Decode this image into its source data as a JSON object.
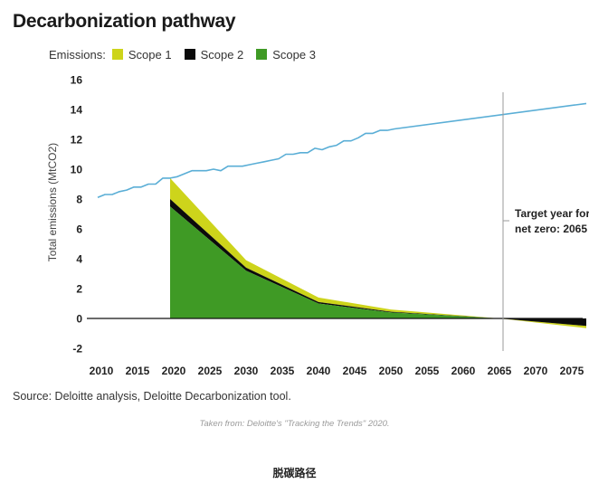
{
  "title": "Decarbonization pathway",
  "legend": {
    "lead": "Emissions:",
    "items": [
      {
        "label": "Scope 1",
        "color": "#cdd41b"
      },
      {
        "label": "Scope 2",
        "color": "#0b0b0b"
      },
      {
        "label": "Scope 3",
        "color": "#3f9a25"
      }
    ]
  },
  "source": "Source: Deloitte analysis, Deloitte Decarbonization tool.",
  "credit": "Taken from: Deloitte's \"Tracking the Trends\" 2020.",
  "caption": "脱碳路径",
  "chart_data": {
    "type": "area",
    "title": "Decarbonization pathway",
    "xlabel": "",
    "ylabel": "Total emissions (MtCO2)",
    "xlim": [
      2010,
      2077
    ],
    "ylim": [
      -2,
      16
    ],
    "xticks": [
      2010,
      2015,
      2020,
      2025,
      2030,
      2035,
      2040,
      2045,
      2050,
      2055,
      2060,
      2065,
      2070,
      2075
    ],
    "yticks": [
      16,
      14,
      12,
      10,
      8,
      6,
      4,
      2,
      0,
      -2
    ],
    "grid": false,
    "legend_position": "top-left",
    "baseline": {
      "color": "#5aaed6",
      "x": [
        2009.5,
        2010.5,
        2011.5,
        2012.5,
        2013.5,
        2014.5,
        2015.5,
        2016.5,
        2017.5,
        2018.5,
        2019.5,
        2020.5,
        2021.5,
        2022.5,
        2023.5,
        2024.5,
        2025.5,
        2026.5,
        2027.5,
        2028.5,
        2029.5,
        2030.5,
        2031.5,
        2032.5,
        2033.5,
        2034.5,
        2035.5,
        2036.5,
        2037.5,
        2038.5,
        2039.5,
        2040.5,
        2041.5,
        2042.5,
        2043.5,
        2044.5,
        2045.5,
        2046.5,
        2047.5,
        2048.5,
        2049.5,
        2050.5,
        2077
      ],
      "y": [
        8.1,
        8.3,
        8.3,
        8.5,
        8.6,
        8.8,
        8.8,
        9.0,
        9.0,
        9.4,
        9.4,
        9.5,
        9.7,
        9.9,
        9.9,
        9.9,
        10.0,
        9.9,
        10.2,
        10.2,
        10.2,
        10.3,
        10.4,
        10.5,
        10.6,
        10.7,
        11.0,
        11.0,
        11.1,
        11.1,
        11.4,
        11.3,
        11.5,
        11.6,
        11.9,
        11.9,
        12.1,
        12.4,
        12.4,
        12.6,
        12.6,
        12.7,
        14.4
      ]
    },
    "x": [
      2019.5,
      2030,
      2040,
      2050,
      2065,
      2077
    ],
    "series": [
      {
        "name": "Scope 3",
        "color": "#3f9a25",
        "values": [
          7.5,
          3.2,
          1.0,
          0.4,
          0,
          0
        ]
      },
      {
        "name": "Scope 2",
        "color": "#0b0b0b",
        "values": [
          0.5,
          0.2,
          0.1,
          0.05,
          0,
          -0.5
        ]
      },
      {
        "name": "Scope 1",
        "color": "#cdd41b",
        "values": [
          1.4,
          0.5,
          0.3,
          0.15,
          0,
          -0.15
        ]
      }
    ],
    "annotations": [
      {
        "x": 2065.5,
        "lines": [
          "Target year for",
          "net zero: 2065"
        ]
      }
    ]
  }
}
